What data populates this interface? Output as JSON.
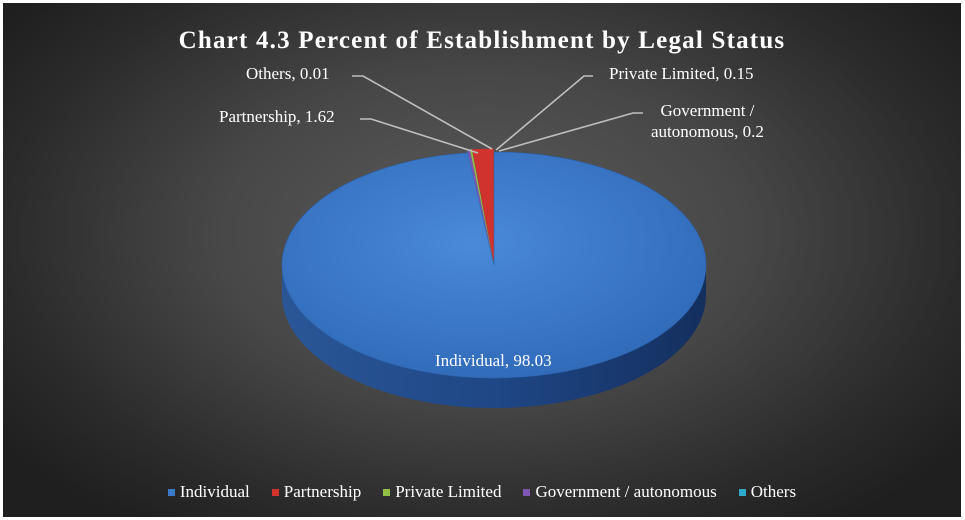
{
  "chart_data": {
    "type": "pie",
    "title": "Chart 4.3 Percent of Establishment by Legal Status",
    "categories": [
      "Individual",
      "Partnership",
      "Private Limited",
      "Government / autonomous",
      "Others"
    ],
    "values": [
      98.03,
      1.62,
      0.15,
      0.2,
      0.01
    ],
    "data_labels": [
      "Individual, 98.03",
      "Partnership, 1.62",
      "Private Limited, 0.15",
      "Government / autonomous, 0.2",
      "Others, 0.01"
    ],
    "gov_label_lines": [
      "Government /",
      "autonomous, 0.2"
    ],
    "colors": [
      "#3a78c8",
      "#d0322d",
      "#92c045",
      "#7f56b4",
      "#2fa9cc"
    ],
    "legend_position": "bottom",
    "style": "3d"
  }
}
